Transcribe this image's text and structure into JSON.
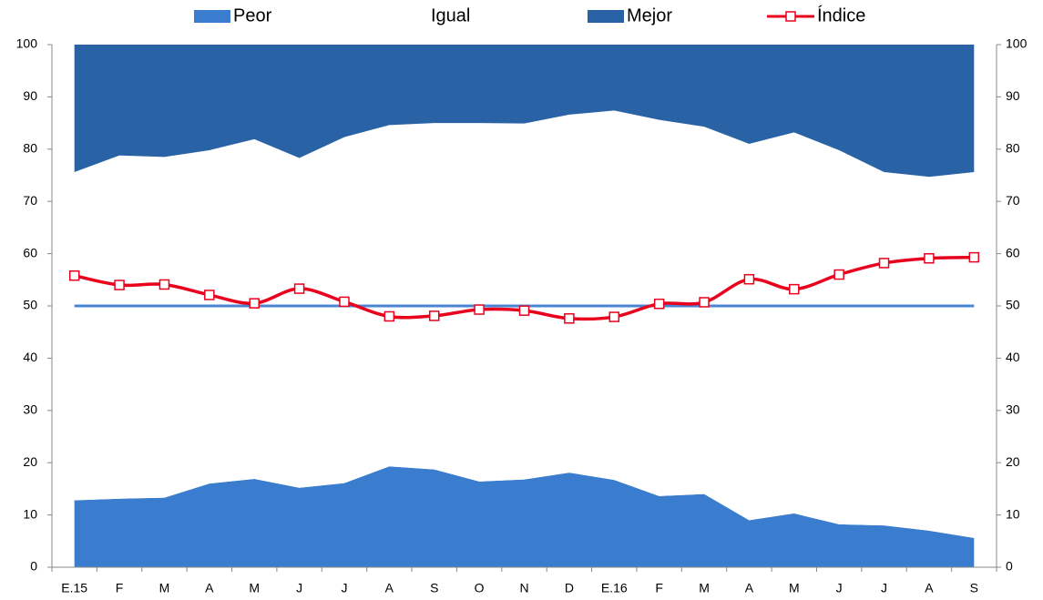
{
  "chart_data": {
    "type": "stacked_area_line",
    "categories": [
      "E.15",
      "F",
      "M",
      "A",
      "M",
      "J",
      "J",
      "A",
      "S",
      "O",
      "N",
      "D",
      "E.16",
      "F",
      "M",
      "A",
      "M",
      "J",
      "J",
      "A",
      "S"
    ],
    "series": [
      {
        "name": "Peor",
        "color": "#3a7dce",
        "values": [
          12.8,
          13.1,
          13.3,
          16.0,
          16.9,
          15.2,
          16.1,
          19.3,
          18.7,
          16.4,
          16.8,
          18.1,
          16.7,
          13.6,
          14.0,
          9.0,
          10.3,
          8.2,
          8.0,
          7.0,
          5.6
        ]
      },
      {
        "name": "Igual",
        "color": "#ffffff",
        "values": [
          62.8,
          65.7,
          65.2,
          63.8,
          65.0,
          63.1,
          66.2,
          65.3,
          66.3,
          68.6,
          68.1,
          68.5,
          70.7,
          72.0,
          70.3,
          72.0,
          72.9,
          71.6,
          67.6,
          67.7,
          70.0
        ]
      },
      {
        "name": "Mejor",
        "color": "#2a62a6",
        "values": [
          24.4,
          21.2,
          21.5,
          20.2,
          18.1,
          21.7,
          17.7,
          15.4,
          15.0,
          15.0,
          15.1,
          13.4,
          12.6,
          14.4,
          15.7,
          19.0,
          16.8,
          20.2,
          24.4,
          25.3,
          24.4
        ]
      },
      {
        "name": "Índice",
        "color": "#e8001c",
        "axis": "y2",
        "values": [
          55.8,
          54.0,
          54.1,
          52.1,
          50.5,
          53.3,
          50.8,
          48.0,
          48.1,
          49.3,
          49.1,
          47.6,
          47.9,
          50.4,
          50.7,
          55.1,
          53.2,
          56.0,
          58.2,
          59.1,
          59.3
        ]
      }
    ],
    "reference_line": {
      "value": 50,
      "color": "#4a86d4"
    },
    "ylim": [
      0,
      100
    ],
    "yticks": [
      0,
      10,
      20,
      30,
      40,
      50,
      60,
      70,
      80,
      90,
      100
    ],
    "y2lim": [
      0,
      100
    ],
    "y2ticks": [
      0,
      10,
      20,
      30,
      40,
      50,
      60,
      70,
      80,
      90,
      100
    ]
  }
}
